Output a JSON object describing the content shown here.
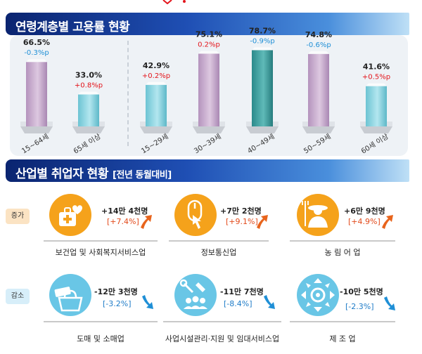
{
  "section1": {
    "title": "연령계층별 고용률 현황"
  },
  "section2": {
    "title": "산업별 취업자 현황",
    "subtitle": "[전년 동월대비]"
  },
  "chart_data": {
    "type": "bar",
    "title": "연령계층별 고용률 현황",
    "categories": [
      "15~64세",
      "65세 이상",
      "15~29세",
      "30~39세",
      "40~49세",
      "50~59세",
      "60세 이상"
    ],
    "values": [
      66.5,
      33.0,
      42.9,
      75.1,
      78.7,
      74.8,
      41.6
    ],
    "value_labels": [
      "66.5%",
      "33.0%",
      "42.9%",
      "75.1%",
      "78.7%",
      "74.8%",
      "41.6%"
    ],
    "change_labels": [
      "-0.3%p",
      "+0.8%p",
      "+0.2%p",
      "0.2%p",
      "-0.9%p",
      "-0.6%p",
      "+0.5%p"
    ],
    "changes": [
      -0.3,
      0.8,
      0.2,
      0.2,
      -0.9,
      -0.6,
      0.5
    ],
    "ylim": [
      0,
      80
    ],
    "grid": false,
    "colors": {
      "pink": "#cdb2d3",
      "cyan": "#8fd3e0",
      "teal_dark": "#3e9c9c",
      "positive_text": "#e3141b",
      "negative_text": "#1f8fd6"
    },
    "bar_colors": [
      "pink",
      "cyan",
      "cyan",
      "pink",
      "teal_dark",
      "pink",
      "cyan"
    ]
  },
  "industries": {
    "increase_label": "증가",
    "decrease_label": "감소",
    "items": [
      {
        "name": "보건업 및 사회복지서비스업",
        "change": "+14만 4천명",
        "pct": "[+7.4%]",
        "direction": "up",
        "icon": "healthcare-icon"
      },
      {
        "name": "정보통신업",
        "change": "+7만 2천명",
        "pct": "[+9.1%]",
        "direction": "up",
        "icon": "mouse-click-icon"
      },
      {
        "name": "농 림 어 업",
        "change": "+6만 9천명",
        "pct": "[+4.9%]",
        "direction": "up",
        "icon": "farmer-icon"
      },
      {
        "name": "도매 및 소매업",
        "change": "-12만 3천명",
        "pct": "[-3.2%]",
        "direction": "down",
        "icon": "shopping-bag-icon"
      },
      {
        "name": "사업시설관리·지원 및 임대서비스업",
        "change": "-11만 7천명",
        "pct": "[-8.4%]",
        "direction": "down",
        "icon": "facility-service-icon"
      },
      {
        "name": "제 조 업",
        "change": "-10만 5천명",
        "pct": "[-2.3%]",
        "direction": "down",
        "icon": "manufacturing-icon"
      }
    ],
    "colors": {
      "up": "#f5a21b",
      "down": "#69c6e6",
      "up_text": "#e24a1a",
      "down_text": "#1f7cc8"
    }
  }
}
